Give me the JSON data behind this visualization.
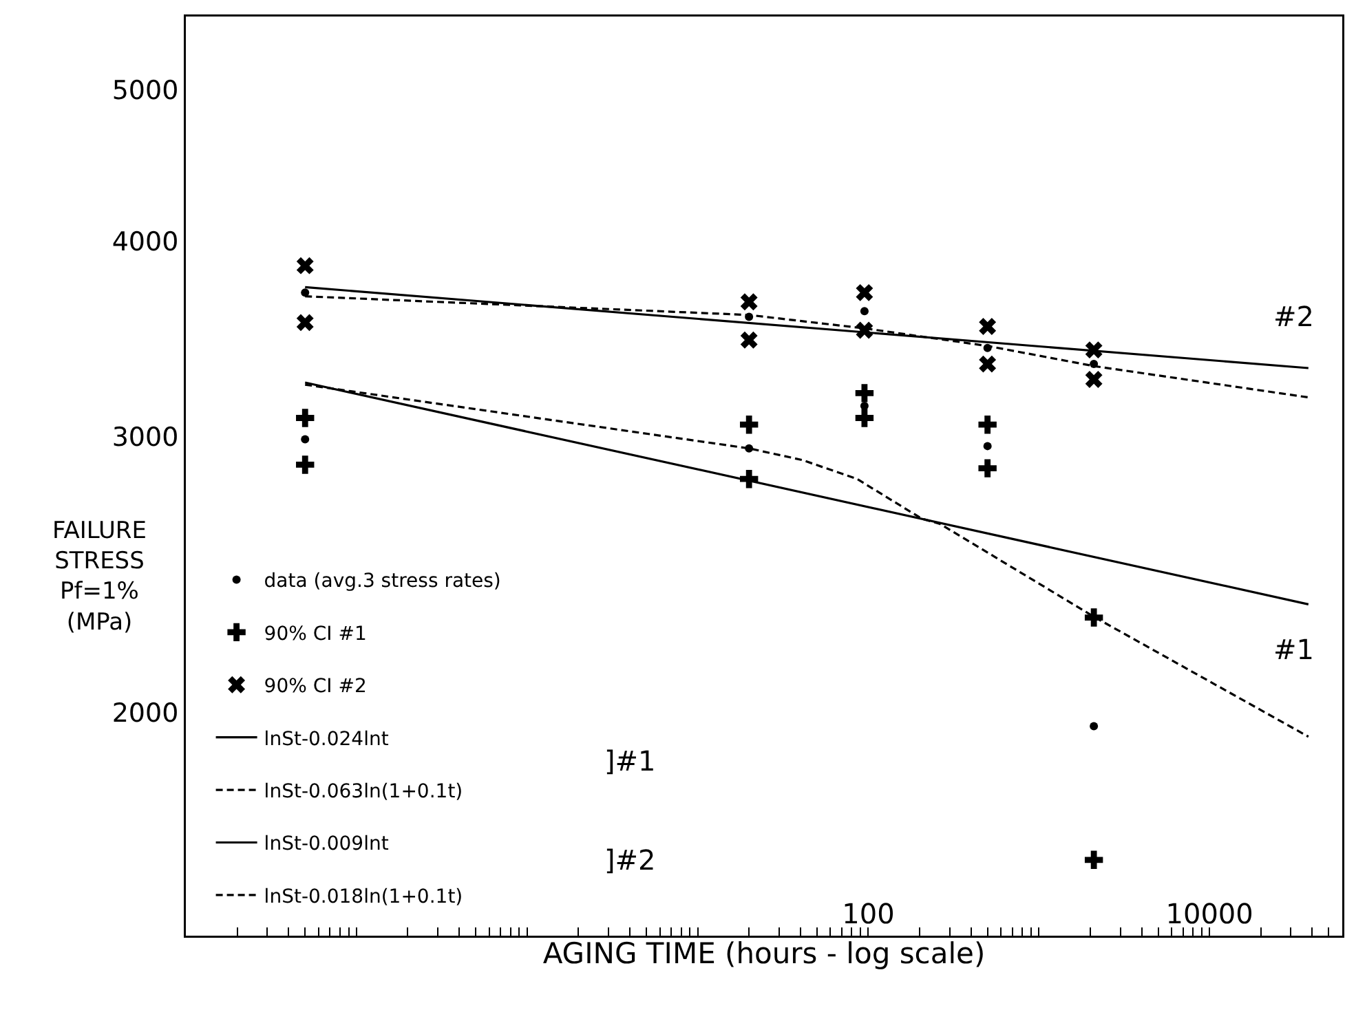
{
  "chart_data": {
    "type": "scatter",
    "xlabel": "AGING TIME (hours - log scale)",
    "ylabel": "FAILURE\nSTRESS\nPf=1%\n(MPa)",
    "log": "xy",
    "grid": false,
    "legend": "bottom left",
    "xlim": [
      0.01,
      60000
    ],
    "ylim": [
      1440,
      5570
    ],
    "xticks": [
      {
        "value": 0.01,
        "label": null
      },
      {
        "value": 0.02,
        "label": null
      },
      {
        "value": 0.03,
        "label": null
      },
      {
        "value": 0.04,
        "label": null
      },
      {
        "value": 0.05,
        "label": null
      },
      {
        "value": 0.06,
        "label": null
      },
      {
        "value": 0.07,
        "label": null
      },
      {
        "value": 0.08,
        "label": null
      },
      {
        "value": 0.09,
        "label": null
      },
      {
        "value": 0.1,
        "label": null
      },
      {
        "value": 0.2,
        "label": null
      },
      {
        "value": 0.3,
        "label": null
      },
      {
        "value": 0.4,
        "label": null
      },
      {
        "value": 0.5,
        "label": null
      },
      {
        "value": 0.6,
        "label": null
      },
      {
        "value": 0.7,
        "label": null
      },
      {
        "value": 0.8,
        "label": null
      },
      {
        "value": 0.9,
        "label": null
      },
      {
        "value": 1,
        "label": null
      },
      {
        "value": 2,
        "label": null
      },
      {
        "value": 3,
        "label": null
      },
      {
        "value": 4,
        "label": null
      },
      {
        "value": 5,
        "label": null
      },
      {
        "value": 6,
        "label": null
      },
      {
        "value": 7,
        "label": null
      },
      {
        "value": 8,
        "label": null
      },
      {
        "value": 9,
        "label": null
      },
      {
        "value": 10,
        "label": null
      },
      {
        "value": 20,
        "label": null
      },
      {
        "value": 30,
        "label": null
      },
      {
        "value": 40,
        "label": null
      },
      {
        "value": 50,
        "label": null
      },
      {
        "value": 60,
        "label": null
      },
      {
        "value": 70,
        "label": null
      },
      {
        "value": 80,
        "label": null
      },
      {
        "value": 90,
        "label": null
      },
      100,
      {
        "value": 200,
        "label": null
      },
      {
        "value": 300,
        "label": null
      },
      {
        "value": 400,
        "label": null
      },
      {
        "value": 500,
        "label": null
      },
      {
        "value": 600,
        "label": null
      },
      {
        "value": 700,
        "label": null
      },
      {
        "value": 800,
        "label": null
      },
      {
        "value": 900,
        "label": null
      },
      {
        "value": 1000,
        "label": null
      },
      {
        "value": 2000,
        "label": null
      },
      {
        "value": 3000,
        "label": null
      },
      {
        "value": 4000,
        "label": null
      },
      {
        "value": 5000,
        "label": null
      },
      {
        "value": 6000,
        "label": null
      },
      {
        "value": 7000,
        "label": null
      },
      {
        "value": 8000,
        "label": null
      },
      {
        "value": 9000,
        "label": null
      },
      10000,
      {
        "value": 20000,
        "label": null
      },
      {
        "value": 30000,
        "label": null
      },
      {
        "value": 40000,
        "label": null
      },
      {
        "value": 50000,
        "label": null
      }
    ],
    "yticks": [
      2000,
      3000,
      4000,
      5000
    ],
    "series": [
      {
        "name": "data (avg.3 stress rates)",
        "marker": "circle",
        "color": "#000000",
        "x": [
          0.05,
          0.05,
          20,
          20,
          95,
          95,
          500,
          500,
          2100,
          2100
        ],
        "values": [
          3710,
          2990,
          3580,
          2950,
          3610,
          3140,
          3420,
          2960,
          3340,
          1960
        ]
      },
      {
        "name": "90% CI #1",
        "marker": "cross",
        "color": "#000000",
        "x": [
          0.05,
          0.05,
          20,
          20,
          95,
          95,
          500,
          500,
          2100,
          2100
        ],
        "values": [
          3085,
          2880,
          3055,
          2820,
          3200,
          3085,
          3055,
          2865,
          2300,
          1610
        ]
      },
      {
        "name": "90% CI #2",
        "marker": "x",
        "color": "#000000",
        "x": [
          0.05,
          0.05,
          20,
          20,
          95,
          95,
          500,
          500,
          2100,
          2100
        ],
        "values": [
          3860,
          3550,
          3660,
          3460,
          3710,
          3510,
          3530,
          3340,
          3410,
          3265
        ]
      },
      {
        "name": "lnSt-0.024lnt",
        "type": "line",
        "line_style": "solid",
        "color": "#000000",
        "x": [
          0.05,
          38000
        ],
        "values": [
          3250,
          2345
        ]
      },
      {
        "name": "lnSt-0.063ln(1+0.1t)",
        "type": "line",
        "line_style": "dashed",
        "color": "#000000",
        "x": [
          0.05,
          20,
          41,
          86,
          206,
          263,
          2140,
          38000
        ],
        "values": [
          3240,
          2950,
          2900,
          2820,
          2660,
          2640,
          2300,
          1930
        ]
      },
      {
        "name": "lnSt-0.009lnt",
        "type": "line",
        "line_style": "solid",
        "color": "#000000",
        "x": [
          0.05,
          38000
        ],
        "values": [
          3740,
          3320
        ]
      },
      {
        "name": "lnSt-0.018ln(1+0.1t)",
        "type": "line",
        "line_style": "dashed",
        "color": "#000000",
        "x": [
          0.05,
          20,
          95,
          500,
          2100,
          38000
        ],
        "values": [
          3690,
          3590,
          3520,
          3430,
          3330,
          3180
        ]
      }
    ],
    "annotations": [
      "]#1",
      "]#2",
      "#2",
      "#1"
    ]
  }
}
